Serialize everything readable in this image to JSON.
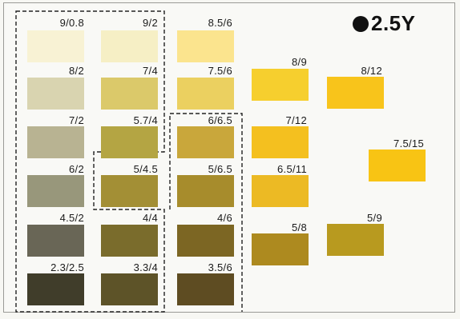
{
  "title": {
    "hue": "2.5Y"
  },
  "chips": [
    {
      "id": "c1",
      "label": "9/0.8",
      "color": "#f8f2d4"
    },
    {
      "id": "c2",
      "label": "9/2",
      "color": "#f6efc5"
    },
    {
      "id": "c3",
      "label": "8.5/6",
      "color": "#fbe48e"
    },
    {
      "id": "c4",
      "label": "8/2",
      "color": "#d9d4b0"
    },
    {
      "id": "c5",
      "label": "7/4",
      "color": "#dbc96a"
    },
    {
      "id": "c6",
      "label": "7.5/6",
      "color": "#ebd060"
    },
    {
      "id": "c7",
      "label": "8/9",
      "color": "#f6cf2e"
    },
    {
      "id": "c8",
      "label": "8/12",
      "color": "#f8c41b"
    },
    {
      "id": "c9",
      "label": "7/2",
      "color": "#b8b392"
    },
    {
      "id": "c10",
      "label": "5.7/4",
      "color": "#b4a543"
    },
    {
      "id": "c11",
      "label": "6/6.5",
      "color": "#c9a73b"
    },
    {
      "id": "c12",
      "label": "7/12",
      "color": "#f4c01f"
    },
    {
      "id": "c13",
      "label": "7.5/15",
      "color": "#f8c414"
    },
    {
      "id": "c14",
      "label": "6/2",
      "color": "#98977b"
    },
    {
      "id": "c15",
      "label": "5/4.5",
      "color": "#a38f35"
    },
    {
      "id": "c16",
      "label": "5/6.5",
      "color": "#a78c2c"
    },
    {
      "id": "c17",
      "label": "6.5/11",
      "color": "#ecba24"
    },
    {
      "id": "c18",
      "label": "4.5/2",
      "color": "#696656"
    },
    {
      "id": "c19",
      "label": "4/4",
      "color": "#7a6c2c"
    },
    {
      "id": "c20",
      "label": "4/6",
      "color": "#7c6623"
    },
    {
      "id": "c21",
      "label": "5/8",
      "color": "#ad8a1f"
    },
    {
      "id": "c22",
      "label": "5/9",
      "color": "#b89a1f"
    },
    {
      "id": "c23",
      "label": "2.3/2.5",
      "color": "#403d2a"
    },
    {
      "id": "c24",
      "label": "3.3/4",
      "color": "#5d5328"
    },
    {
      "id": "c25",
      "label": "3.5/6",
      "color": "#5e4c22"
    }
  ]
}
